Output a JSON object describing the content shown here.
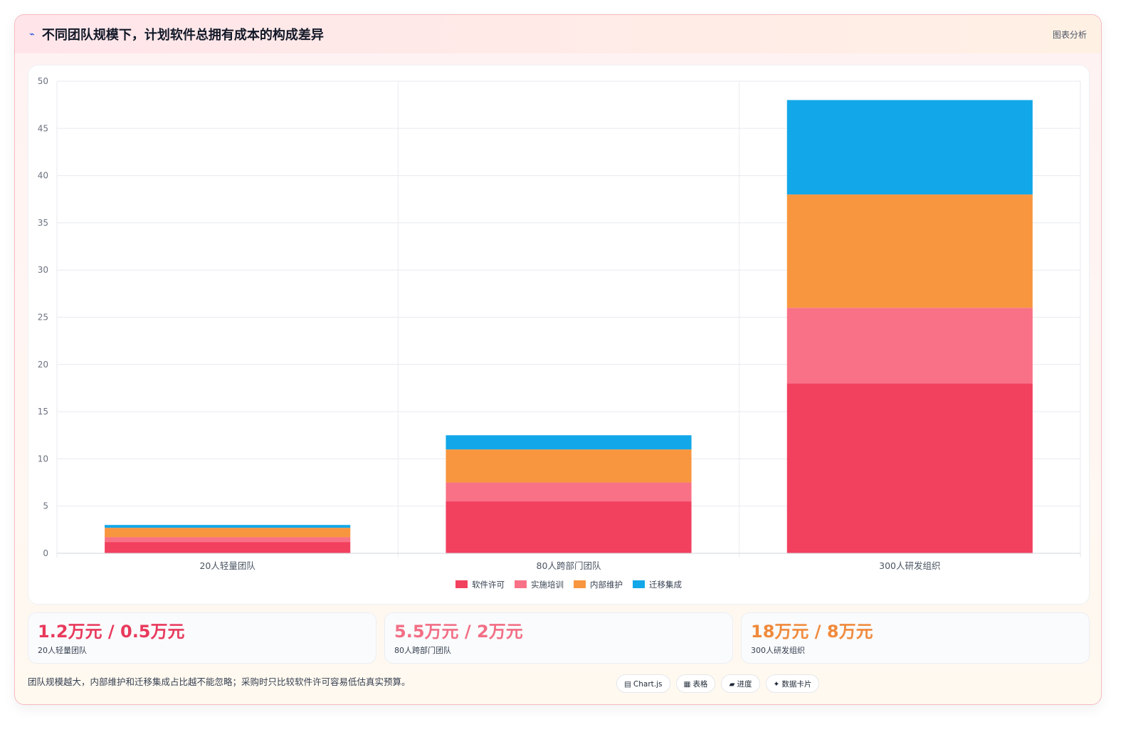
{
  "header": {
    "title": "不同团队规模下，计划软件总拥有成本的构成差异",
    "tag": "图表分析"
  },
  "chart_data": {
    "type": "bar",
    "stacked": true,
    "categories": [
      "20人轻量团队",
      "80人跨部门团队",
      "300人研发组织"
    ],
    "series": [
      {
        "name": "软件许可",
        "values": [
          1.2,
          5.5,
          18
        ],
        "color": "#f2405f"
      },
      {
        "name": "实施培训",
        "values": [
          0.5,
          2,
          8
        ],
        "color": "#f87186"
      },
      {
        "name": "内部维护",
        "values": [
          1,
          3.5,
          12
        ],
        "color": "#f8963f"
      },
      {
        "name": "迁移集成",
        "values": [
          0.3,
          1.5,
          10
        ],
        "color": "#12a7e8"
      }
    ],
    "ylim": [
      0,
      50
    ],
    "yticks": [
      0,
      5,
      10,
      15,
      20,
      25,
      30,
      35,
      40,
      45,
      50
    ],
    "grid": true,
    "legend": "bottom"
  },
  "stats": [
    {
      "value": "1.2万元 / 0.5万元",
      "label": "20人轻量团队",
      "color": "#e83a5c"
    },
    {
      "value": "5.5万元 / 2万元",
      "label": "80人跨部门团队",
      "color": "#f16f85"
    },
    {
      "value": "18万元 / 8万元",
      "label": "300人研发组织",
      "color": "#f08a3c"
    }
  ],
  "footer": {
    "note": "团队规模越大，内部维护和迁移集成占比越不能忽略；采购时只比较软件许可容易低估真实预算。"
  },
  "pills": [
    {
      "icon": "▤",
      "icon_name": "chart-icon",
      "label": "Chart.js"
    },
    {
      "icon": "▦",
      "icon_name": "table-icon",
      "label": "表格"
    },
    {
      "icon": "▰",
      "icon_name": "progress-icon",
      "label": "进度"
    },
    {
      "icon": "✦",
      "icon_name": "card-icon",
      "label": "数据卡片"
    }
  ]
}
